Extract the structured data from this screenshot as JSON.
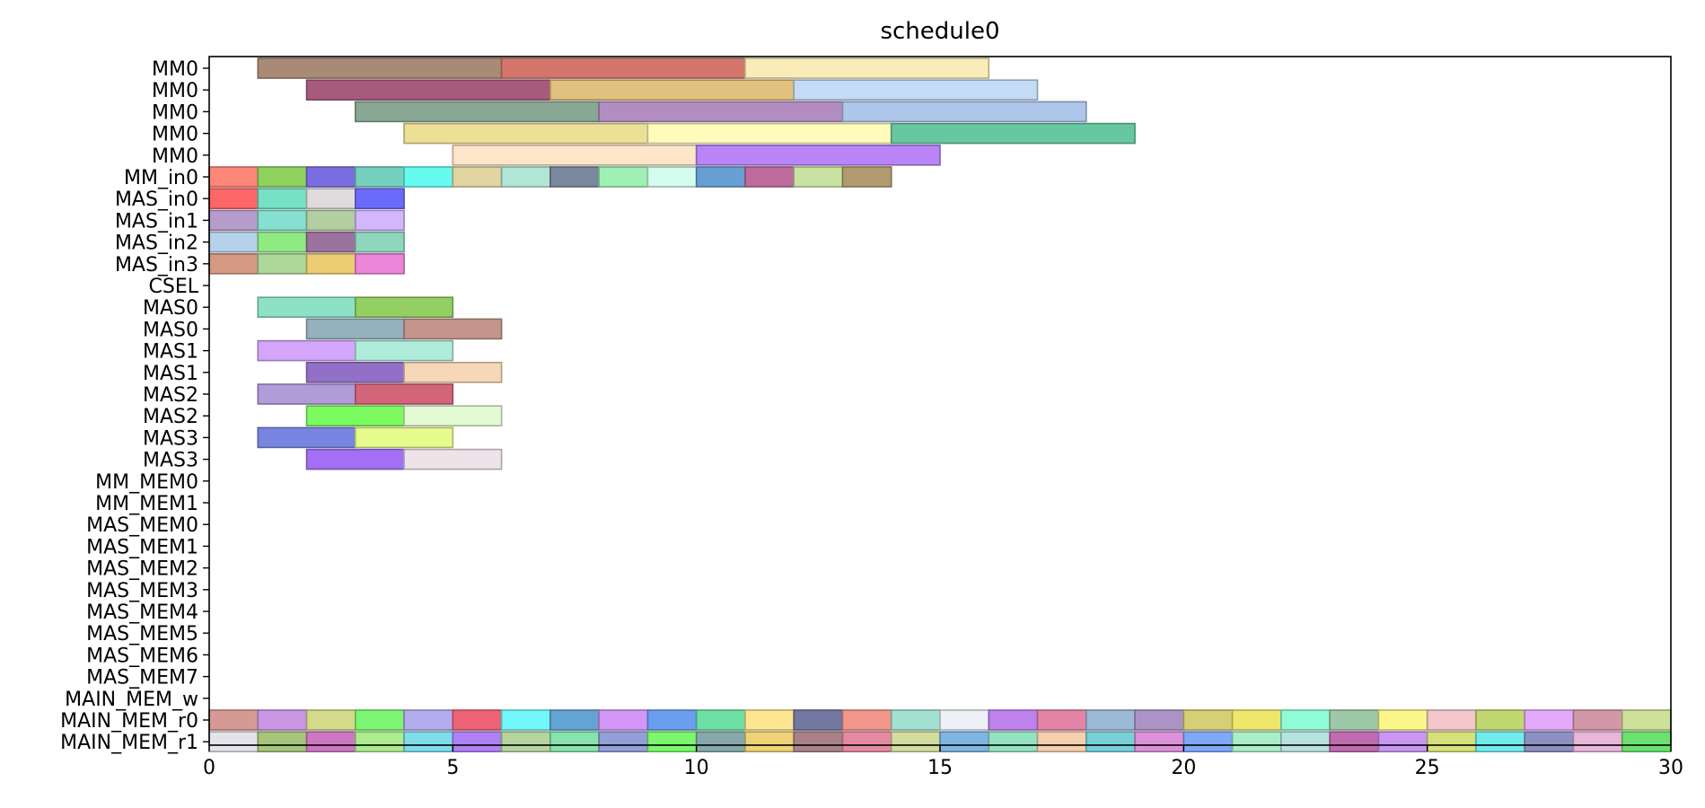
{
  "chart_data": {
    "type": "gantt",
    "title": "schedule0",
    "xlabel": "",
    "ylabel": "",
    "xlim": [
      0,
      30
    ],
    "xticks": [
      0,
      5,
      10,
      15,
      20,
      25,
      30
    ],
    "grid": false,
    "rows": [
      "MM0",
      "MM0",
      "MM0",
      "MM0",
      "MM0",
      "MM_in0",
      "MAS_in0",
      "MAS_in1",
      "MAS_in2",
      "MAS_in3",
      "CSEL",
      "MAS0",
      "MAS0",
      "MAS1",
      "MAS1",
      "MAS2",
      "MAS2",
      "MAS3",
      "MAS3",
      "MM_MEM0",
      "MM_MEM1",
      "MAS_MEM0",
      "MAS_MEM1",
      "MAS_MEM2",
      "MAS_MEM3",
      "MAS_MEM4",
      "MAS_MEM5",
      "MAS_MEM6",
      "MAS_MEM7",
      "MAIN_MEM_w",
      "MAIN_MEM_r0",
      "MAIN_MEM_r1"
    ],
    "tasks": [
      {
        "row": 0,
        "start": 1,
        "end": 6,
        "color": "#a88a77"
      },
      {
        "row": 0,
        "start": 6,
        "end": 11,
        "color": "#d3766c"
      },
      {
        "row": 0,
        "start": 11,
        "end": 16,
        "color": "#faecb9"
      },
      {
        "row": 1,
        "start": 2,
        "end": 7,
        "color": "#a75b7c"
      },
      {
        "row": 1,
        "start": 7,
        "end": 12,
        "color": "#e2c17f"
      },
      {
        "row": 1,
        "start": 12,
        "end": 17,
        "color": "#c4dbf5"
      },
      {
        "row": 2,
        "start": 3,
        "end": 8,
        "color": "#88a894"
      },
      {
        "row": 2,
        "start": 8,
        "end": 13,
        "color": "#b38dc0"
      },
      {
        "row": 2,
        "start": 13,
        "end": 18,
        "color": "#adc6ea"
      },
      {
        "row": 3,
        "start": 4,
        "end": 9,
        "color": "#ede096"
      },
      {
        "row": 3,
        "start": 9,
        "end": 14,
        "color": "#fffbbb"
      },
      {
        "row": 3,
        "start": 14,
        "end": 19,
        "color": "#67c7a1"
      },
      {
        "row": 4,
        "start": 5,
        "end": 10,
        "color": "#fde5c8"
      },
      {
        "row": 4,
        "start": 10,
        "end": 15,
        "color": "#b884f6"
      },
      {
        "row": 5,
        "start": 0,
        "end": 1,
        "color": "#fd8677"
      },
      {
        "row": 5,
        "start": 1,
        "end": 2,
        "color": "#8fd05f"
      },
      {
        "row": 5,
        "start": 2,
        "end": 3,
        "color": "#7b6ee0"
      },
      {
        "row": 5,
        "start": 3,
        "end": 4,
        "color": "#76d0c0"
      },
      {
        "row": 5,
        "start": 4,
        "end": 5,
        "color": "#65fbee"
      },
      {
        "row": 5,
        "start": 5,
        "end": 6,
        "color": "#e2d5a1"
      },
      {
        "row": 5,
        "start": 6,
        "end": 7,
        "color": "#b1e5d6"
      },
      {
        "row": 5,
        "start": 7,
        "end": 8,
        "color": "#7a879c"
      },
      {
        "row": 5,
        "start": 8,
        "end": 9,
        "color": "#9ff0b3"
      },
      {
        "row": 5,
        "start": 9,
        "end": 10,
        "color": "#d3fbee"
      },
      {
        "row": 5,
        "start": 10,
        "end": 11,
        "color": "#679ed3"
      },
      {
        "row": 5,
        "start": 11,
        "end": 12,
        "color": "#bd6b9d"
      },
      {
        "row": 5,
        "start": 12,
        "end": 13,
        "color": "#c8e3a1"
      },
      {
        "row": 5,
        "start": 13,
        "end": 14,
        "color": "#b09c70"
      },
      {
        "row": 6,
        "start": 0,
        "end": 1,
        "color": "#fd6767"
      },
      {
        "row": 6,
        "start": 1,
        "end": 2,
        "color": "#77e1c4"
      },
      {
        "row": 6,
        "start": 2,
        "end": 3,
        "color": "#dfdbdd"
      },
      {
        "row": 6,
        "start": 3,
        "end": 4,
        "color": "#6b6bfb"
      },
      {
        "row": 7,
        "start": 0,
        "end": 1,
        "color": "#b59ccb"
      },
      {
        "row": 7,
        "start": 1,
        "end": 2,
        "color": "#86e0d0"
      },
      {
        "row": 7,
        "start": 2,
        "end": 3,
        "color": "#b3cfa2"
      },
      {
        "row": 7,
        "start": 3,
        "end": 4,
        "color": "#d4b7fb"
      },
      {
        "row": 8,
        "start": 0,
        "end": 1,
        "color": "#b6d1ea"
      },
      {
        "row": 8,
        "start": 1,
        "end": 2,
        "color": "#8fea82"
      },
      {
        "row": 8,
        "start": 2,
        "end": 3,
        "color": "#9c729f"
      },
      {
        "row": 8,
        "start": 3,
        "end": 4,
        "color": "#8fd6bf"
      },
      {
        "row": 9,
        "start": 0,
        "end": 1,
        "color": "#d59882"
      },
      {
        "row": 9,
        "start": 1,
        "end": 2,
        "color": "#add89a"
      },
      {
        "row": 9,
        "start": 2,
        "end": 3,
        "color": "#eccd73"
      },
      {
        "row": 9,
        "start": 3,
        "end": 4,
        "color": "#eb85d8"
      },
      {
        "row": 11,
        "start": 1,
        "end": 3,
        "color": "#8de1c6"
      },
      {
        "row": 11,
        "start": 3,
        "end": 5,
        "color": "#93cf63"
      },
      {
        "row": 12,
        "start": 2,
        "end": 4,
        "color": "#95b1be"
      },
      {
        "row": 12,
        "start": 4,
        "end": 6,
        "color": "#c4958c"
      },
      {
        "row": 13,
        "start": 1,
        "end": 3,
        "color": "#d4a6fb"
      },
      {
        "row": 13,
        "start": 3,
        "end": 5,
        "color": "#b0ecdb"
      },
      {
        "row": 14,
        "start": 2,
        "end": 4,
        "color": "#9370c8"
      },
      {
        "row": 14,
        "start": 4,
        "end": 6,
        "color": "#f6d7b8"
      },
      {
        "row": 15,
        "start": 1,
        "end": 3,
        "color": "#b19bd8"
      },
      {
        "row": 15,
        "start": 3,
        "end": 5,
        "color": "#d46479"
      },
      {
        "row": 16,
        "start": 2,
        "end": 4,
        "color": "#7bfa5f"
      },
      {
        "row": 16,
        "start": 4,
        "end": 6,
        "color": "#e3fbd2"
      },
      {
        "row": 17,
        "start": 1,
        "end": 3,
        "color": "#7885e1"
      },
      {
        "row": 17,
        "start": 3,
        "end": 5,
        "color": "#e7fb8d"
      },
      {
        "row": 18,
        "start": 2,
        "end": 4,
        "color": "#a36ff4"
      },
      {
        "row": 18,
        "start": 4,
        "end": 6,
        "color": "#ede3e8"
      },
      {
        "row": 30,
        "start": 0,
        "end": 1,
        "color": "#d59a93"
      },
      {
        "row": 30,
        "start": 1,
        "end": 2,
        "color": "#c997e4"
      },
      {
        "row": 30,
        "start": 2,
        "end": 3,
        "color": "#d4da8a"
      },
      {
        "row": 30,
        "start": 3,
        "end": 4,
        "color": "#7cf572"
      },
      {
        "row": 30,
        "start": 4,
        "end": 5,
        "color": "#b3acee"
      },
      {
        "row": 30,
        "start": 5,
        "end": 6,
        "color": "#ee6276"
      },
      {
        "row": 30,
        "start": 6,
        "end": 7,
        "color": "#72f8fa"
      },
      {
        "row": 30,
        "start": 7,
        "end": 8,
        "color": "#64a4d4"
      },
      {
        "row": 30,
        "start": 8,
        "end": 9,
        "color": "#d496f9"
      },
      {
        "row": 30,
        "start": 9,
        "end": 10,
        "color": "#6c9ef0"
      },
      {
        "row": 30,
        "start": 10,
        "end": 11,
        "color": "#6ee0a6"
      },
      {
        "row": 30,
        "start": 11,
        "end": 12,
        "color": "#fde691"
      },
      {
        "row": 30,
        "start": 12,
        "end": 13,
        "color": "#74779f"
      },
      {
        "row": 30,
        "start": 13,
        "end": 14,
        "color": "#f3968b"
      },
      {
        "row": 30,
        "start": 14,
        "end": 15,
        "color": "#a2e0cf"
      },
      {
        "row": 30,
        "start": 15,
        "end": 16,
        "color": "#eef0f7"
      },
      {
        "row": 30,
        "start": 16,
        "end": 17,
        "color": "#bf81ec"
      },
      {
        "row": 30,
        "start": 17,
        "end": 18,
        "color": "#e384a6"
      },
      {
        "row": 30,
        "start": 18,
        "end": 19,
        "color": "#9cb9d6"
      },
      {
        "row": 30,
        "start": 19,
        "end": 20,
        "color": "#ab94c5"
      },
      {
        "row": 30,
        "start": 20,
        "end": 21,
        "color": "#d7cf75"
      },
      {
        "row": 30,
        "start": 21,
        "end": 22,
        "color": "#ede86c"
      },
      {
        "row": 30,
        "start": 22,
        "end": 23,
        "color": "#8ffcd5"
      },
      {
        "row": 30,
        "start": 23,
        "end": 24,
        "color": "#9ec8a6"
      },
      {
        "row": 30,
        "start": 24,
        "end": 25,
        "color": "#fcf78b"
      },
      {
        "row": 30,
        "start": 25,
        "end": 26,
        "color": "#f5c6cb"
      },
      {
        "row": 30,
        "start": 26,
        "end": 27,
        "color": "#c1d870"
      },
      {
        "row": 30,
        "start": 27,
        "end": 28,
        "color": "#e3a9fb"
      },
      {
        "row": 30,
        "start": 28,
        "end": 29,
        "color": "#d398a7"
      },
      {
        "row": 30,
        "start": 29,
        "end": 30,
        "color": "#cde198"
      },
      {
        "row": 31,
        "start": 0,
        "end": 1,
        "color": "#e3e3e9"
      },
      {
        "row": 31,
        "start": 1,
        "end": 2,
        "color": "#a6c47a"
      },
      {
        "row": 31,
        "start": 2,
        "end": 3,
        "color": "#cd77c3"
      },
      {
        "row": 31,
        "start": 3,
        "end": 4,
        "color": "#adec8e"
      },
      {
        "row": 31,
        "start": 4,
        "end": 5,
        "color": "#7edceb"
      },
      {
        "row": 31,
        "start": 5,
        "end": 6,
        "color": "#ae82f5"
      },
      {
        "row": 31,
        "start": 6,
        "end": 7,
        "color": "#b6d49e"
      },
      {
        "row": 31,
        "start": 7,
        "end": 8,
        "color": "#86e3ab"
      },
      {
        "row": 31,
        "start": 8,
        "end": 9,
        "color": "#939fd8"
      },
      {
        "row": 31,
        "start": 9,
        "end": 10,
        "color": "#7bf76d"
      },
      {
        "row": 31,
        "start": 10,
        "end": 11,
        "color": "#86a8ab"
      },
      {
        "row": 31,
        "start": 11,
        "end": 12,
        "color": "#efd277"
      },
      {
        "row": 31,
        "start": 12,
        "end": 13,
        "color": "#a98289"
      },
      {
        "row": 31,
        "start": 13,
        "end": 14,
        "color": "#e48a9f"
      },
      {
        "row": 31,
        "start": 14,
        "end": 15,
        "color": "#d3dc9d"
      },
      {
        "row": 31,
        "start": 15,
        "end": 16,
        "color": "#7fb5e2"
      },
      {
        "row": 31,
        "start": 16,
        "end": 17,
        "color": "#93e3c2"
      },
      {
        "row": 31,
        "start": 17,
        "end": 18,
        "color": "#f6cfae"
      },
      {
        "row": 31,
        "start": 18,
        "end": 19,
        "color": "#79cfd8"
      },
      {
        "row": 31,
        "start": 19,
        "end": 20,
        "color": "#dc91d8"
      },
      {
        "row": 31,
        "start": 20,
        "end": 21,
        "color": "#7ea8f9"
      },
      {
        "row": 31,
        "start": 21,
        "end": 22,
        "color": "#a8efc9"
      },
      {
        "row": 31,
        "start": 22,
        "end": 23,
        "color": "#b6e3df"
      },
      {
        "row": 31,
        "start": 23,
        "end": 24,
        "color": "#c06aaf"
      },
      {
        "row": 31,
        "start": 24,
        "end": 25,
        "color": "#c996f3"
      },
      {
        "row": 31,
        "start": 25,
        "end": 26,
        "color": "#d5e07a"
      },
      {
        "row": 31,
        "start": 26,
        "end": 27,
        "color": "#72ebed"
      },
      {
        "row": 31,
        "start": 27,
        "end": 28,
        "color": "#8e8fc3"
      },
      {
        "row": 31,
        "start": 28,
        "end": 29,
        "color": "#e8b6d8"
      },
      {
        "row": 31,
        "start": 29,
        "end": 30,
        "color": "#6be16f"
      }
    ]
  }
}
